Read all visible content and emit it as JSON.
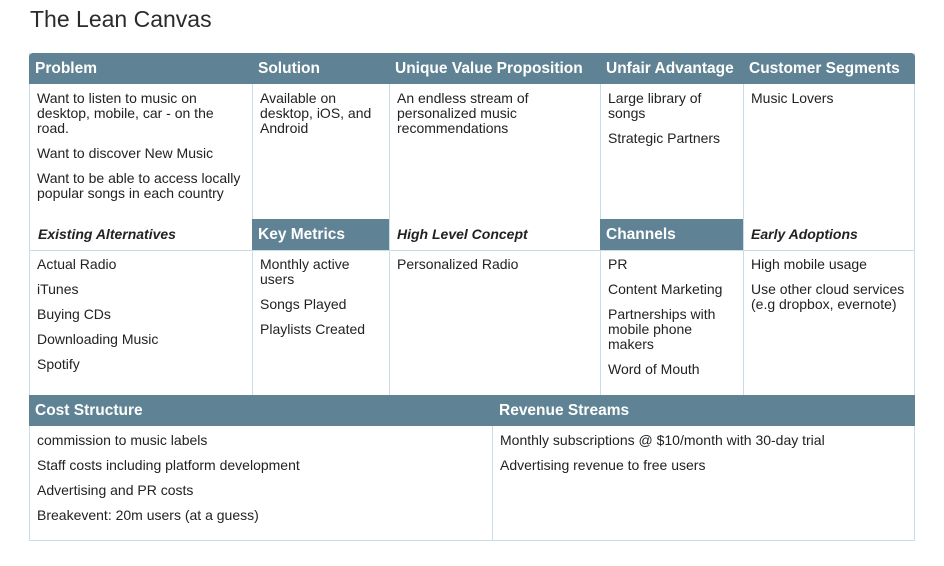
{
  "title": "The Lean Canvas",
  "problem": {
    "label": "Problem",
    "items": [
      "Want to listen to music on desktop, mobile, car - on the road.",
      "Want to discover New Music",
      "Want to be able to access locally popular songs in each country"
    ]
  },
  "existing_alternatives": {
    "label": "Existing Alternatives",
    "items": [
      "Actual Radio",
      "iTunes",
      "Buying CDs",
      "Downloading Music",
      "Spotify"
    ]
  },
  "solution": {
    "label": "Solution",
    "items": [
      "Available on desktop, iOS, and Android"
    ]
  },
  "key_metrics": {
    "label": "Key Metrics",
    "items": [
      "Monthly active users",
      "Songs Played",
      "Playlists Created"
    ]
  },
  "uvp": {
    "label": "Unique Value Proposition",
    "items": [
      "An endless stream of personalized music recommendations"
    ]
  },
  "high_level_concept": {
    "label": "High Level Concept",
    "items": [
      "Personalized Radio"
    ]
  },
  "unfair_advantage": {
    "label": "Unfair Advantage",
    "items": [
      "Large library of songs",
      "Strategic Partners"
    ]
  },
  "channels": {
    "label": "Channels",
    "items": [
      "PR",
      "Content Marketing",
      "Partnerships with mobile phone makers",
      "Word of Mouth"
    ]
  },
  "customer_segments": {
    "label": "Customer Segments",
    "items": [
      "Music Lovers"
    ]
  },
  "early_adoptions": {
    "label": "Early Adoptions",
    "items": [
      "High mobile usage",
      "Use other cloud services (e.g dropbox, evernote)"
    ]
  },
  "cost_structure": {
    "label": "Cost Structure",
    "items": [
      "commission to music labels",
      "Staff costs including platform development",
      "Advertising and PR costs",
      "Breakevent: 20m users (at a guess)"
    ]
  },
  "revenue_streams": {
    "label": "Revenue Streams",
    "items": [
      "Monthly subscriptions @ $10/month with 30-day trial",
      "Advertising revenue to free users"
    ]
  },
  "colors": {
    "header": "#5f8394",
    "border": "#c9dde6"
  }
}
